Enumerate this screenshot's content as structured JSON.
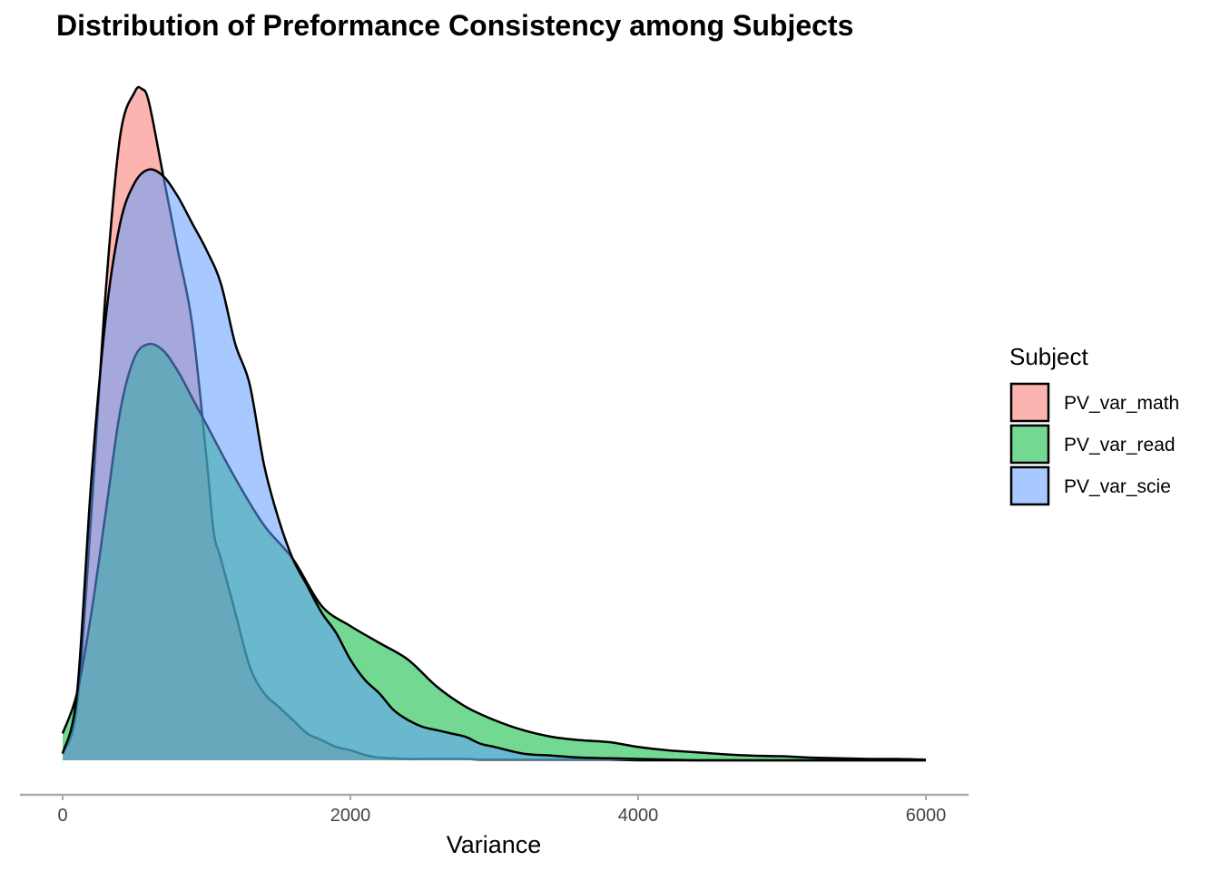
{
  "chart_data": {
    "type": "area",
    "title": "Distribution of Preformance Consistency among Subjects",
    "xlabel": "Variance",
    "ylabel": "",
    "xlim": [
      0,
      6000
    ],
    "ylim": [
      0,
      1
    ],
    "x_ticks": [
      "0",
      "2000",
      "4000",
      "6000"
    ],
    "grid": false,
    "legend": {
      "title": "Subject",
      "position": "right"
    },
    "series": [
      {
        "name": "PV_var_math",
        "color": "#F8766D",
        "x": [
          0,
          100,
          200,
          300,
          400,
          500,
          550,
          600,
          700,
          800,
          900,
          1000,
          1050,
          1100,
          1200,
          1300,
          1400,
          1500,
          1600,
          1700,
          1800,
          1900,
          2000,
          2100,
          2200,
          2400,
          2500,
          2600,
          2700,
          2800,
          2900,
          3000,
          3200,
          3400,
          3600,
          3800,
          4000,
          4500,
          5000,
          6000
        ],
        "values": [
          0.01,
          0.08,
          0.37,
          0.7,
          0.93,
          0.995,
          1.0,
          0.98,
          0.87,
          0.76,
          0.65,
          0.45,
          0.34,
          0.3,
          0.22,
          0.14,
          0.1,
          0.08,
          0.06,
          0.04,
          0.03,
          0.02,
          0.015,
          0.008,
          0.004,
          0.002,
          0.002,
          0.002,
          0.002,
          0.002,
          0.001,
          0.001,
          0.001,
          0.001,
          0.001,
          0.001,
          0.0,
          0.0,
          0.0,
          0.0
        ]
      },
      {
        "name": "PV_var_read",
        "color": "#00BA38",
        "x": [
          0,
          100,
          200,
          300,
          400,
          500,
          600,
          700,
          800,
          900,
          1000,
          1200,
          1400,
          1600,
          1800,
          2000,
          2200,
          2400,
          2600,
          2800,
          3000,
          3200,
          3400,
          3600,
          3800,
          4000,
          4200,
          4400,
          4600,
          4800,
          5000,
          5200,
          5400,
          5600,
          5800,
          6000
        ],
        "values": [
          0.04,
          0.1,
          0.22,
          0.37,
          0.52,
          0.6,
          0.62,
          0.61,
          0.58,
          0.54,
          0.5,
          0.42,
          0.35,
          0.3,
          0.23,
          0.2,
          0.175,
          0.15,
          0.11,
          0.08,
          0.06,
          0.045,
          0.035,
          0.03,
          0.027,
          0.02,
          0.015,
          0.012,
          0.009,
          0.007,
          0.006,
          0.004,
          0.003,
          0.002,
          0.002,
          0.001
        ]
      },
      {
        "name": "PV_var_scie",
        "color": "#619CFF",
        "x": [
          0,
          100,
          200,
          300,
          400,
          500,
          600,
          700,
          800,
          900,
          1000,
          1100,
          1200,
          1300,
          1400,
          1500,
          1600,
          1700,
          1800,
          1900,
          2000,
          2100,
          2200,
          2300,
          2400,
          2500,
          2600,
          2700,
          2800,
          2900,
          3000,
          3200,
          3400,
          3600,
          3800,
          4000,
          4200,
          4400,
          4600,
          5000,
          6000
        ],
        "values": [
          0.01,
          0.1,
          0.42,
          0.66,
          0.8,
          0.86,
          0.88,
          0.87,
          0.84,
          0.8,
          0.76,
          0.71,
          0.62,
          0.56,
          0.44,
          0.36,
          0.3,
          0.26,
          0.22,
          0.19,
          0.15,
          0.12,
          0.1,
          0.075,
          0.06,
          0.05,
          0.045,
          0.04,
          0.035,
          0.025,
          0.02,
          0.01,
          0.007,
          0.004,
          0.003,
          0.002,
          0.001,
          0.0,
          0.0,
          0.0,
          0.0
        ]
      }
    ]
  }
}
